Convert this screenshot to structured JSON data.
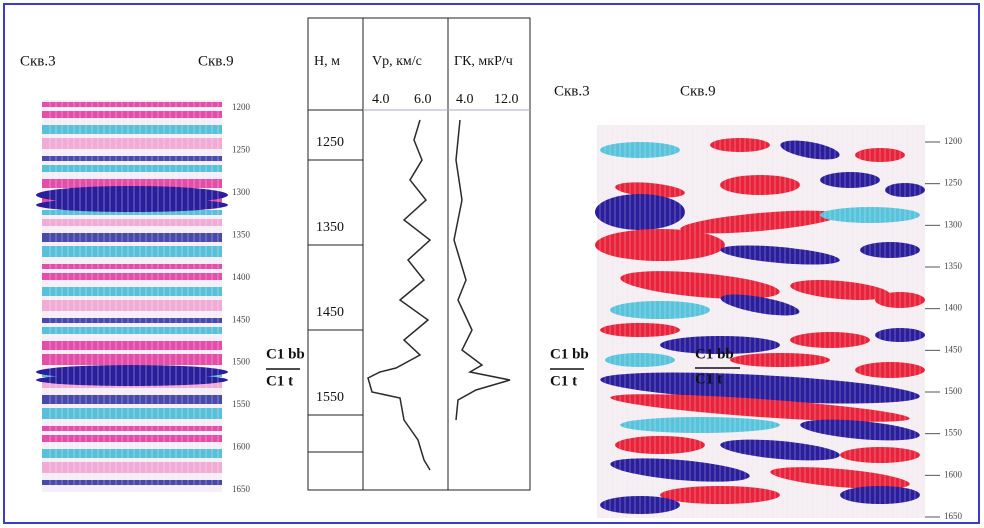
{
  "left_panel": {
    "well_left": "Скв.3",
    "well_right": "Скв.9",
    "depth_labels": [
      "1200",
      "1250",
      "1300",
      "1350",
      "1400",
      "1450",
      "1500",
      "1550",
      "1600",
      "1650"
    ],
    "horizon_top": "C1 bb",
    "horizon_bottom": "C1 t"
  },
  "log_panel": {
    "headers": {
      "depth": "Н, м",
      "vp": "Vp, км/с",
      "gk": "ГК, мкР/ч"
    },
    "vp_ticks": [
      "4.0",
      "6.0"
    ],
    "gk_ticks": [
      "4.0",
      "12.0"
    ],
    "depth_labels": [
      "1250",
      "1350",
      "1450",
      "1550"
    ]
  },
  "right_panel": {
    "well_left": "Скв.3",
    "well_right": "Скв.9",
    "depth_labels": [
      "1200",
      "1250",
      "1300",
      "1350",
      "1400",
      "1450",
      "1500",
      "1550",
      "1600",
      "1650"
    ],
    "horizon_top": "C1 bb",
    "horizon_bottom": "C1 t",
    "inner_horizon_top": "C1 bb",
    "inner_horizon_bottom": "C1 t"
  }
}
